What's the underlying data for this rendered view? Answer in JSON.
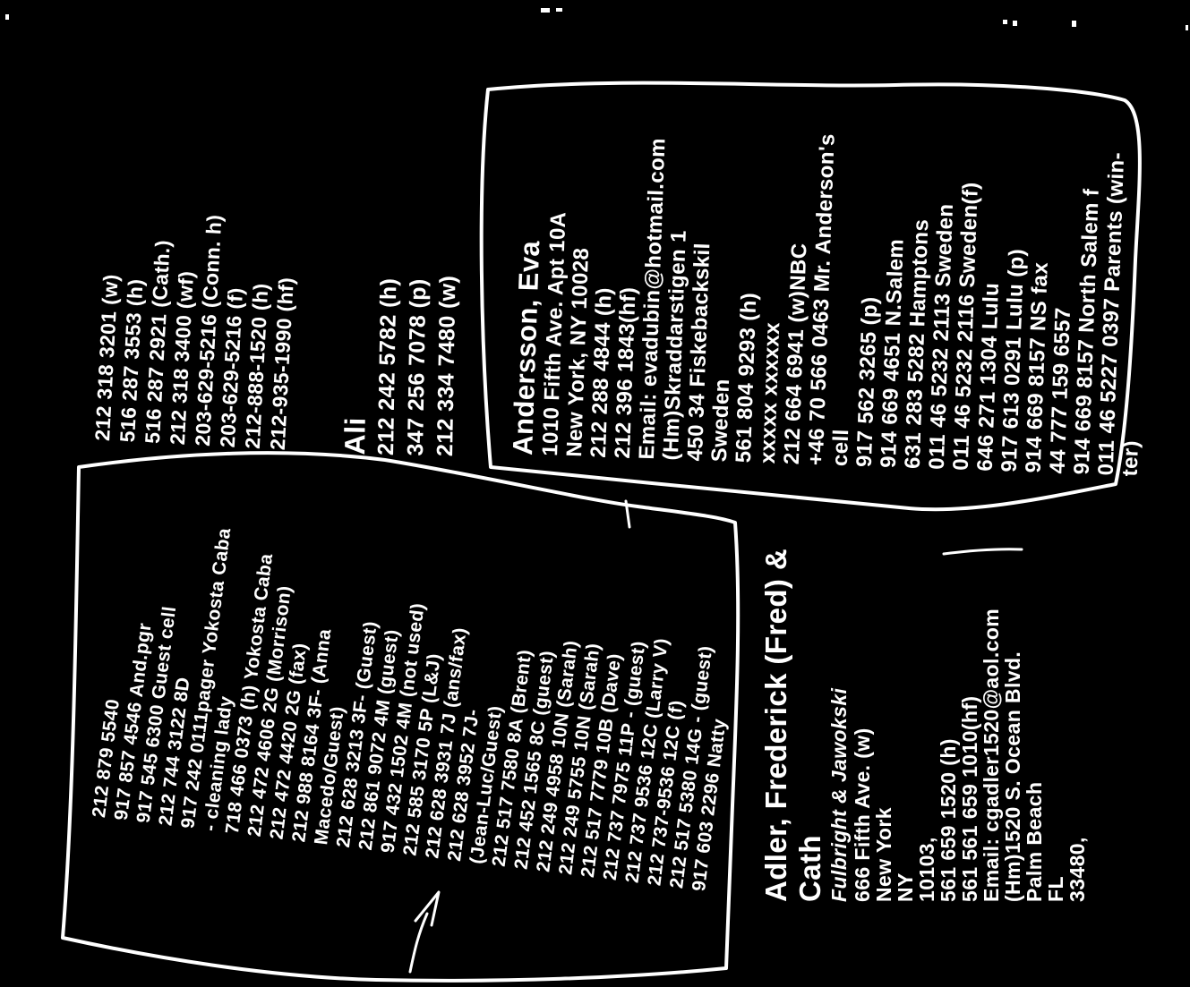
{
  "page": {
    "background": "#000000",
    "ink_color": "#ffffff"
  },
  "phone_block": {
    "lines": [
      "212 318 3201 (w)",
      "516 287 3553 (h)",
      "516 287 2921 (Cath.)",
      "212 318 3400 (wf)",
      "203-629-5216 (Conn. h)",
      "203-629-5216 (f)",
      "212-888-1520 (h)",
      "212-935-1990 (hf)"
    ]
  },
  "ali_block": {
    "title": "Ali",
    "lines": [
      "212 242 5782 (h)",
      "347 256 7078 (p)",
      "212 334 7480 (w)"
    ]
  },
  "andersson_block": {
    "title": "Andersson, Eva",
    "lines": [
      "1010 Fifth Ave. Apt 10A",
      "New York, NY 10028",
      "212 288 4844 (h)",
      "212 396 1843(hf)",
      "Email: evadubin@hotmail.com",
      "(Hm)Skraddarstigen 1",
      "450 34 Fiskebackskil",
      "Sweden",
      "561 804 9293 (h)",
      "xxxxx xxxxxx",
      "212 664 6941 (w)NBC",
      "+46 70 566 0463 Mr. Anderson's",
      "cell",
      "917 562 3265 (p)",
      "914 669 4651 N.Salem",
      "631 283 5282 Hamptons",
      "011 46 5232 2113 Sweden",
      "011 46 5232 2116 Sweden(f)",
      "646 271 1304 Lulu",
      "917 613 0291 Lulu (p)",
      "914 669 8157 NS fax",
      "44 777 159 6557",
      "914 669 8157 North Salem f",
      "011 46 5227 0397 Parents (win-",
      "ter)"
    ]
  },
  "guest_list_block": {
    "lines": [
      "212 879 5540",
      "917 857 4546 And.pgr",
      "917 545 6300 Guest cell",
      "212 744 3122 8D",
      "917 242 0111pager Yokosta Caba",
      "- cleaning lady",
      "718 466 0373 (h) Yokosta Caba",
      "212 472 4606 2G (Morrison)",
      "212 472 4420 2G (fax)",
      "212 988 8164 3F- (Anna",
      "Macedo/Guest)",
      "212 628 3213 3F- (Guest)",
      "212 861 9072 4M (guest)",
      "917 432 1502 4M (not used)",
      "212 585 3170 5P (L&J)",
      "212 628 3931 7J (ans/fax)",
      "212 628 3952 7J-",
      "(Jean-Luc/Guest)",
      "212 517 7580 8A (Brent)",
      "212 452 1565 8C (guest)",
      "212 249 4958 10N (Sarah)",
      "212 249 5755 10N (Sarah)",
      "212 517 7779 10B (Dave)",
      "212 737 7975 11P - (guest)",
      "212 737 9536 12C (Larry V)",
      "212 737-9536 12C (f)",
      "212 517 5380 14G - (guest)",
      "917 603 2296 Natty"
    ]
  },
  "adler_block": {
    "title_line1": "Adler, Frederick (Fred) &",
    "title_line2": "Cath",
    "firm": "Fulbright & Jawokski",
    "lines": [
      "666 Fifth Ave. (w)",
      "New York",
      "NY",
      "10103,",
      "561 659 1520 (h)",
      "561 561 659 1010(hf)",
      "Email: cgadler1520@aol.com",
      "(Hm)1520 S. Ocean Blvd.",
      "Palm Beach",
      "FL",
      "33480,"
    ]
  }
}
